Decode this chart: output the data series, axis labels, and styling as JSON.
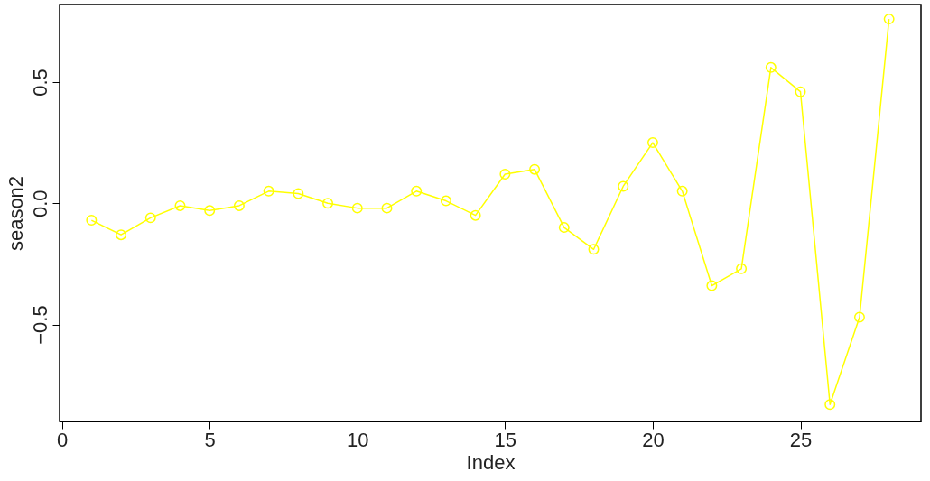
{
  "chart_data": {
    "type": "line",
    "xlabel": "Index",
    "ylabel": "season2",
    "x": [
      1,
      2,
      3,
      4,
      5,
      6,
      7,
      8,
      9,
      10,
      11,
      12,
      13,
      14,
      15,
      16,
      17,
      18,
      19,
      20,
      21,
      22,
      23,
      24,
      25,
      26,
      27,
      28
    ],
    "series": [
      {
        "color": "#ffff00",
        "values": [
          -0.07,
          -0.13,
          -0.06,
          -0.01,
          -0.03,
          -0.01,
          0.05,
          0.04,
          0.0,
          -0.02,
          -0.02,
          0.05,
          0.01,
          -0.05,
          0.12,
          0.14,
          -0.1,
          -0.19,
          0.07,
          0.25,
          0.05,
          -0.34,
          -0.27,
          0.56,
          0.46,
          -0.83,
          -0.47,
          0.76
        ]
      }
    ],
    "xlim": [
      -0.08,
      29.08
    ],
    "ylim": [
      -0.9,
      0.82
    ],
    "xticks": [
      0,
      5,
      10,
      15,
      20,
      25
    ],
    "yticks": [
      -0.5,
      {
        "value": 0,
        "label": "0.0"
      },
      0.5
    ],
    "marker": "circle",
    "line_style": "solid",
    "grid": false
  }
}
